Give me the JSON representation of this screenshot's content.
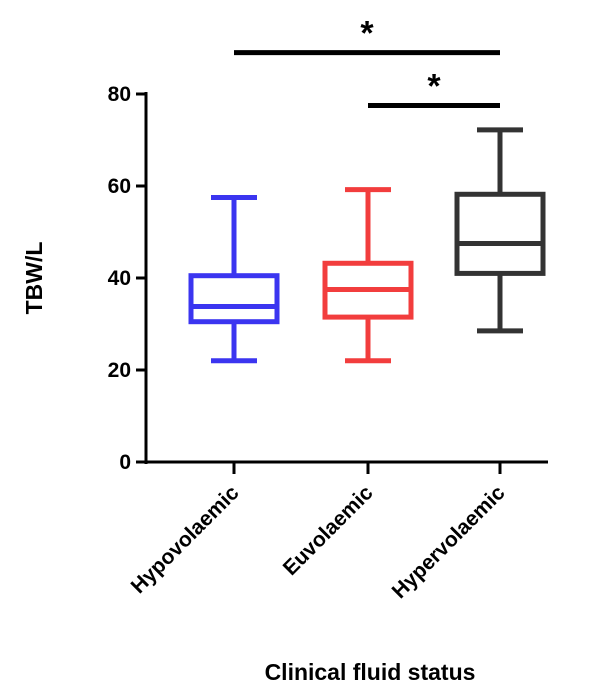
{
  "chart_data": {
    "type": "box",
    "xlabel": "Clinical fluid status",
    "ylabel": "TBW/L",
    "ylim": [
      0,
      80
    ],
    "yticks": [
      0,
      20,
      40,
      60,
      80
    ],
    "grid": false,
    "categories": [
      "Hypovolaemic",
      "Euvolaemic",
      "Hypervolaemic"
    ],
    "boxes": [
      {
        "category": "Hypovolaemic",
        "min": 22,
        "q1": 30.5,
        "median": 33.8,
        "q3": 40.5,
        "max": 57.5,
        "color": "#3b35f0"
      },
      {
        "category": "Euvolaemic",
        "min": 22,
        "q1": 31.5,
        "median": 37.5,
        "q3": 43.2,
        "max": 59.2,
        "color": "#f23d3d"
      },
      {
        "category": "Hypervolaemic",
        "min": 28.5,
        "q1": 41,
        "median": 47.5,
        "q3": 58.2,
        "max": 72.2,
        "color": "#333333"
      }
    ],
    "significance": [
      {
        "from": "Hypovolaemic",
        "to": "Hypervolaemic",
        "label": "*",
        "level": 89
      },
      {
        "from": "Euvolaemic",
        "to": "Hypervolaemic",
        "label": "*",
        "level": 77.5
      }
    ]
  }
}
